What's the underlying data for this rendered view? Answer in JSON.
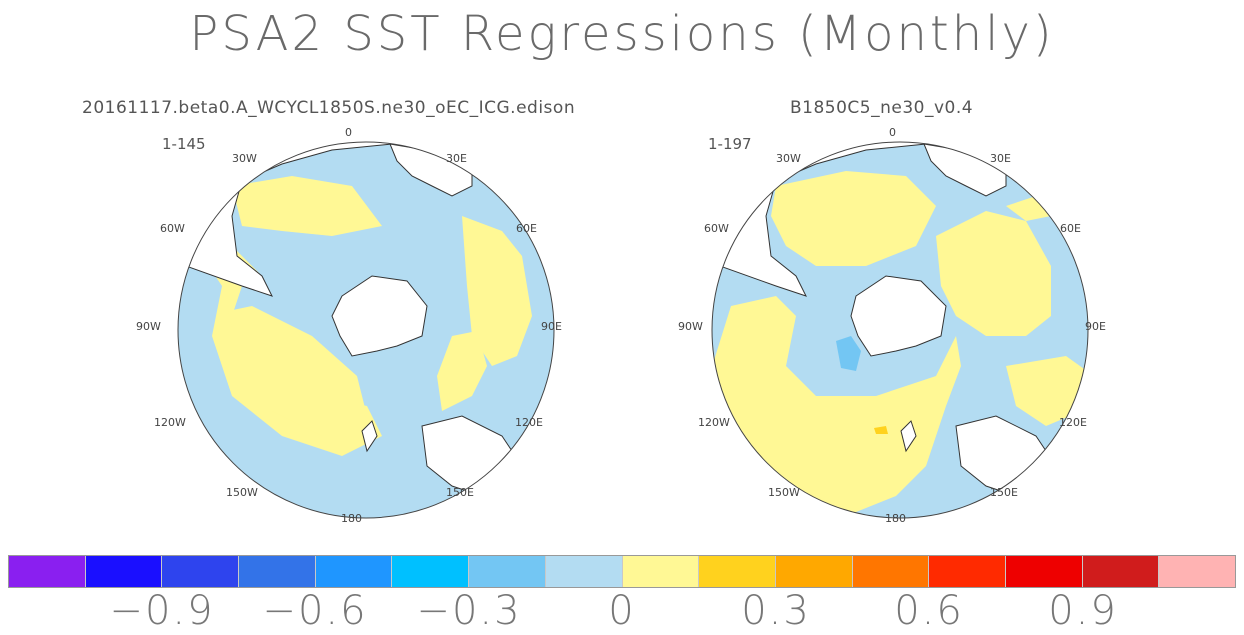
{
  "title": "PSA2 SST Regressions (Monthly)",
  "panels": [
    {
      "subtitle": "20161117.beta0.A_WCYCL1850S.ne30_oEC_ICG.edison",
      "range": "1-145",
      "lon_labels": [
        "0",
        "30E",
        "60E",
        "90E",
        "120E",
        "150E",
        "180",
        "150W",
        "120W",
        "90W",
        "60W",
        "30W"
      ]
    },
    {
      "subtitle": "B1850C5_ne30_v0.4",
      "range": "1-197",
      "lon_labels": [
        "0",
        "30E",
        "60E",
        "90E",
        "120E",
        "150E",
        "180",
        "150W",
        "120W",
        "90W",
        "60W",
        "30W"
      ]
    }
  ],
  "colorbar": {
    "colors": [
      "#8a1ff0",
      "#1a0fff",
      "#2e44ee",
      "#3373e8",
      "#1f96ff",
      "#00c0ff",
      "#73c6f3",
      "#b3dcf2",
      "#fff895",
      "#ffd21e",
      "#ffa800",
      "#ff7600",
      "#ff2a00",
      "#ee0000",
      "#d01c1c",
      "#ffb3b3"
    ],
    "labels": [
      "−0.9",
      "−0.6",
      "−0.3",
      "0",
      "0.3",
      "0.6",
      "0.9"
    ]
  }
}
